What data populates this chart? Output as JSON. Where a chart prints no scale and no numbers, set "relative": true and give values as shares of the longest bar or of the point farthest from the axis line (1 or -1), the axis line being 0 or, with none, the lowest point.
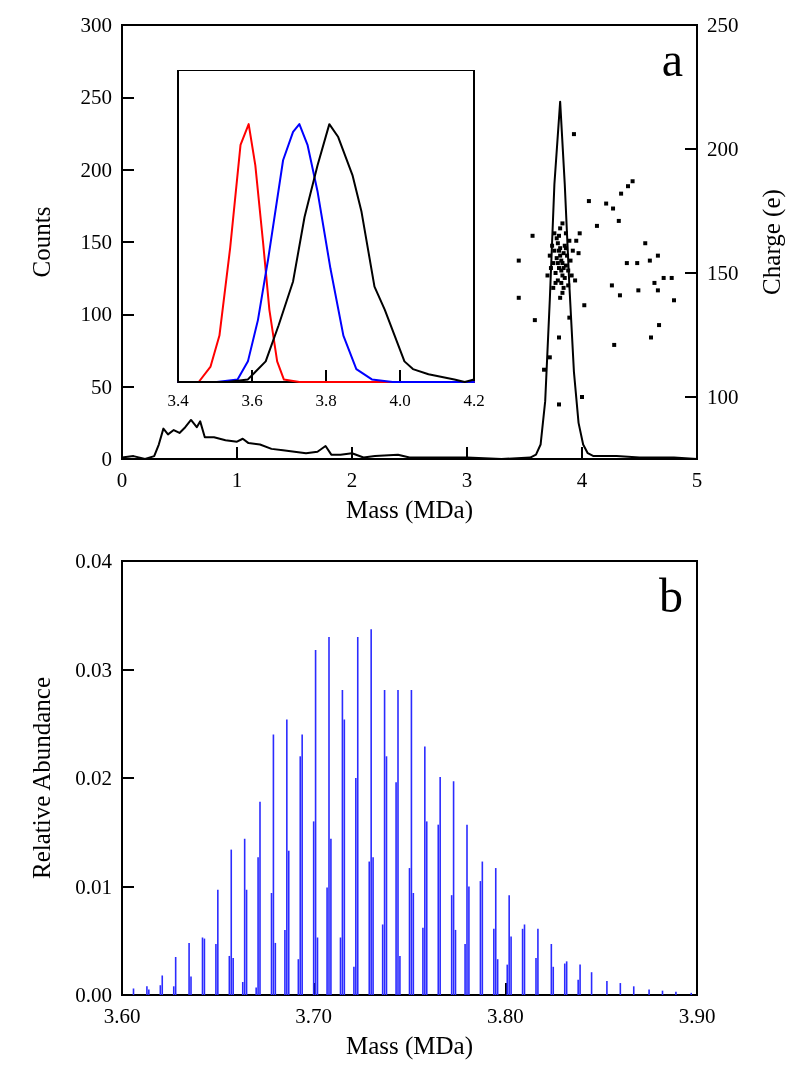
{
  "chart_data": [
    {
      "type": "line",
      "xlabel": "Mass (MDa)",
      "ylabel": "Counts",
      "y2label": "Charge (e)",
      "annotations": [
        "a"
      ],
      "xlim": [
        0,
        5
      ],
      "xticks": [
        0,
        1,
        2,
        3,
        4,
        5
      ],
      "ylim": [
        0,
        300
      ],
      "yticks": [
        0,
        50,
        100,
        150,
        200,
        250,
        300
      ],
      "y2lim": [
        75,
        250
      ],
      "y2ticks": [
        100,
        150,
        200,
        250
      ],
      "grid": false,
      "series": [
        {
          "color": "#000000",
          "marker": "none",
          "x": [
            0,
            0.1,
            0.2,
            0.28,
            0.32,
            0.36,
            0.4,
            0.45,
            0.5,
            0.55,
            0.6,
            0.65,
            0.68,
            0.72,
            0.8,
            0.9,
            1.0,
            1.05,
            1.1,
            1.2,
            1.3,
            1.4,
            1.5,
            1.6,
            1.7,
            1.77,
            1.82,
            1.9,
            2.0,
            2.1,
            2.2,
            2.4,
            2.5,
            2.7,
            3.0,
            3.3,
            3.55,
            3.6,
            3.64,
            3.68,
            3.72,
            3.76,
            3.81,
            3.85,
            3.89,
            3.93,
            3.97,
            4.01,
            4.05,
            4.1,
            4.2,
            4.3,
            4.5,
            4.8,
            5
          ],
          "values": [
            1,
            2,
            0,
            2,
            10,
            21,
            17,
            20,
            18,
            22,
            27,
            22,
            26,
            15,
            15,
            13,
            12,
            14,
            11,
            10,
            7,
            6,
            5,
            4,
            5,
            9,
            3,
            3,
            4,
            1,
            2,
            3,
            1,
            1,
            1,
            0,
            1,
            3,
            10,
            40,
            110,
            190,
            247,
            190,
            120,
            60,
            25,
            10,
            4,
            2,
            2,
            2,
            1,
            1,
            0
          ]
        },
        {
          "type": "scatter",
          "axis": "y2",
          "color": "#000000",
          "marker": "square",
          "x": [
            3.82,
            3.8,
            3.84,
            3.78,
            3.86,
            3.81,
            3.83,
            3.79,
            3.85,
            3.77,
            3.87,
            3.82,
            3.8,
            3.84,
            3.76,
            3.88,
            3.75,
            3.89,
            3.81,
            3.83,
            3.74,
            3.9,
            3.79,
            3.86,
            3.73,
            3.92,
            3.78,
            3.85,
            3.82,
            3.81,
            3.83,
            3.8,
            3.84,
            3.79,
            3.86,
            3.77,
            3.88,
            3.76,
            3.91,
            3.72,
            3.95,
            3.97,
            3.7,
            3.94,
            3.83,
            3.81,
            3.98,
            3.75,
            3.93,
            4.44,
            4.4,
            4.34,
            4.27,
            4.06,
            4.21,
            4.32,
            4.55,
            4.66,
            4.59,
            4.48,
            4.39,
            4.71,
            4.78,
            4.63,
            4.49,
            4.66,
            4.8,
            4.33,
            4.26,
            4.67,
            4.6,
            4.28,
            3.45,
            3.45,
            3.59,
            3.72,
            3.8,
            3.8,
            4.0,
            4.02,
            3.67,
            3.89,
            4.13,
            3.57
          ],
          "values": [
            155,
            152,
            158,
            156,
            153,
            160,
            149,
            162,
            161,
            150,
            157,
            146,
            165,
            144,
            159,
            151,
            154,
            163,
            168,
            142,
            161,
            155,
            147,
            166,
            152,
            159,
            164,
            148,
            151,
            157,
            154,
            159,
            152,
            154,
            160,
            146,
            145,
            166,
            149,
            157,
            163,
            158,
            149,
            147,
            170,
            140,
            166,
            144,
            206,
            187,
            185,
            182,
            176,
            179,
            178,
            171,
            162,
            157,
            155,
            154,
            154,
            148,
            148,
            146,
            143,
            143,
            139,
            141,
            145,
            129,
            124,
            121,
            155,
            140,
            131,
            116,
            124,
            97,
            100,
            137,
            111,
            132,
            169,
            165
          ]
        }
      ]
    },
    {
      "type": "line",
      "relative": true,
      "tick_labels": "x",
      "xlim": [
        3.4,
        4.2
      ],
      "xticks": [
        3.4,
        3.6,
        3.8,
        {
          "value": 4.0,
          "label": "4.0"
        },
        4.2
      ],
      "series": [
        {
          "color": "#ff0000",
          "x": [
            3.4,
            3.456,
            3.488,
            3.512,
            3.541,
            3.569,
            3.591,
            3.609,
            3.63,
            3.647,
            3.668,
            3.686,
            3.728,
            4.2
          ],
          "values": [
            0,
            0,
            0.06,
            0.18,
            0.52,
            0.92,
            1,
            0.84,
            0.54,
            0.28,
            0.08,
            0.01,
            0,
            0
          ]
        },
        {
          "color": "#0000ff",
          "x": [
            3.4,
            3.505,
            3.561,
            3.589,
            3.616,
            3.644,
            3.684,
            3.711,
            3.728,
            3.75,
            3.777,
            3.812,
            3.847,
            3.882,
            3.924,
            3.98,
            4.2
          ],
          "values": [
            0,
            0,
            0.01,
            0.08,
            0.24,
            0.48,
            0.86,
            0.97,
            1,
            0.92,
            0.74,
            0.44,
            0.18,
            0.05,
            0.01,
            0,
            0
          ]
        },
        {
          "color": "#000000",
          "x": [
            3.4,
            3.533,
            3.589,
            3.637,
            3.672,
            3.711,
            3.742,
            3.777,
            3.809,
            3.833,
            3.872,
            3.896,
            3.931,
            3.959,
            4.012,
            4.035,
            4.077,
            4.147,
            4.175,
            4.2
          ],
          "values": [
            0,
            0,
            0.01,
            0.08,
            0.22,
            0.39,
            0.64,
            0.84,
            1,
            0.95,
            0.8,
            0.66,
            0.37,
            0.28,
            0.08,
            0.05,
            0.03,
            0.01,
            0,
            0.01
          ]
        }
      ]
    },
    {
      "type": "bar",
      "xlabel": "Mass (MDa)",
      "ylabel": "Relative Abundance",
      "annotations": [
        "b"
      ],
      "color": "#2b2bff",
      "grid": false,
      "xlim": [
        3.6,
        3.9
      ],
      "xticks": [
        {
          "value": 3.6,
          "label": "3.60"
        },
        {
          "value": 3.7,
          "label": "3.70"
        },
        {
          "value": 3.8,
          "label": "3.80"
        },
        {
          "value": 3.9,
          "label": "3.90"
        }
      ],
      "ylim": [
        0,
        0.04
      ],
      "yticks": [
        {
          "value": 0,
          "label": "0.00"
        },
        {
          "value": 0.01,
          "label": "0.01"
        },
        {
          "value": 0.02,
          "label": "0.02"
        },
        {
          "value": 0.03,
          "label": "0.03"
        },
        {
          "value": 0.04,
          "label": "0.04"
        }
      ],
      "x": [
        3.606,
        3.613,
        3.614,
        3.62,
        3.621,
        3.627,
        3.628,
        3.635,
        3.636,
        3.642,
        3.643,
        3.649,
        3.65,
        3.656,
        3.657,
        3.658,
        3.663,
        3.664,
        3.665,
        3.67,
        3.671,
        3.672,
        3.678,
        3.679,
        3.68,
        3.685,
        3.686,
        3.687,
        3.692,
        3.693,
        3.694,
        3.7,
        3.701,
        3.702,
        3.707,
        3.708,
        3.709,
        3.714,
        3.715,
        3.716,
        3.721,
        3.722,
        3.723,
        3.729,
        3.73,
        3.731,
        3.736,
        3.737,
        3.738,
        3.743,
        3.744,
        3.745,
        3.75,
        3.751,
        3.752,
        3.757,
        3.758,
        3.759,
        3.765,
        3.766,
        3.772,
        3.773,
        3.774,
        3.779,
        3.78,
        3.781,
        3.787,
        3.788,
        3.794,
        3.795,
        3.796,
        3.801,
        3.802,
        3.803,
        3.809,
        3.81,
        3.816,
        3.817,
        3.824,
        3.825,
        3.831,
        3.832,
        3.838,
        3.839,
        3.845,
        3.853,
        3.86,
        3.867,
        3.875,
        3.882,
        3.889,
        3.897
      ],
      "values": [
        0.0006,
        0.0008,
        0.0005,
        0.0009,
        0.0018,
        0.0008,
        0.0035,
        0.0048,
        0.0017,
        0.0053,
        0.0052,
        0.0047,
        0.0097,
        0.0036,
        0.0134,
        0.0034,
        0.0012,
        0.0144,
        0.0097,
        0.0007,
        0.0127,
        0.0178,
        0.0094,
        0.024,
        0.0048,
        0.006,
        0.0254,
        0.0133,
        0.0033,
        0.022,
        0.024,
        0.016,
        0.0318,
        0.0053,
        0.0099,
        0.033,
        0.0144,
        0.0053,
        0.0281,
        0.0254,
        0.0026,
        0.02,
        0.033,
        0.0123,
        0.0337,
        0.0127,
        0.0065,
        0.0281,
        0.022,
        0.0196,
        0.0281,
        0.0036,
        0.0117,
        0.0281,
        0.0094,
        0.0062,
        0.0229,
        0.016,
        0.0157,
        0.0201,
        0.0092,
        0.0197,
        0.006,
        0.0047,
        0.0157,
        0.01,
        0.0105,
        0.0123,
        0.0061,
        0.0117,
        0.0033,
        0.0028,
        0.0092,
        0.0054,
        0.0061,
        0.0065,
        0.0034,
        0.0061,
        0.0047,
        0.0026,
        0.0029,
        0.0031,
        0.0014,
        0.0028,
        0.0021,
        0.0013,
        0.0011,
        0.0008,
        0.0005,
        0.0004,
        0.0003,
        0.0002
      ]
    }
  ]
}
